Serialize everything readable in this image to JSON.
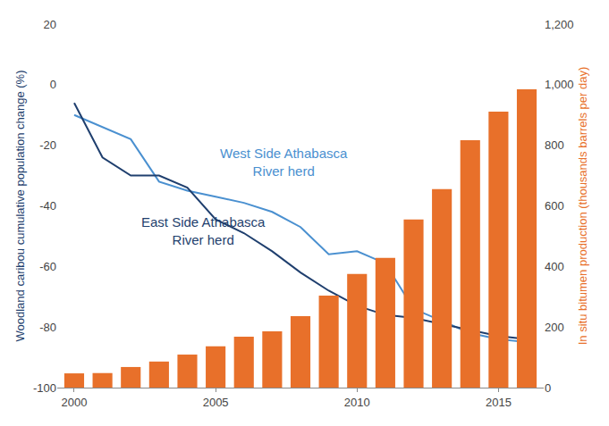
{
  "chart_data": {
    "type": "bar",
    "x": [
      2000,
      2001,
      2002,
      2003,
      2004,
      2005,
      2006,
      2007,
      2008,
      2009,
      2010,
      2011,
      2012,
      2013,
      2014,
      2015,
      2016
    ],
    "xlim": [
      1999.4,
      2016.6
    ],
    "xticks": [
      2000,
      2005,
      2010,
      2015
    ],
    "ylabel": "Woodland caribou cumulative population change (%)",
    "ylim": [
      -100,
      20
    ],
    "yticks": [
      -100,
      -80,
      -60,
      -40,
      -20,
      0,
      20
    ],
    "y2label": "In situ bitumen production (thousands barrels per day)",
    "y2lim": [
      0,
      1200
    ],
    "y2ticks": [
      0,
      200,
      400,
      600,
      800,
      {
        "value": 1000,
        "label": "1,000"
      },
      {
        "value": 1200,
        "label": "1,200"
      }
    ],
    "grid": false,
    "series": [
      {
        "type": "bar",
        "axis": "y2",
        "color": "#e8702a",
        "values": [
          47,
          48,
          68,
          86,
          109,
          136,
          168,
          186,
          236,
          304,
          375,
          428,
          555,
          655,
          817,
          911,
          985
        ]
      },
      {
        "type": "line",
        "name": "West Side Athabasca River herd",
        "color": "#4a90d0",
        "values": [
          -10,
          -14,
          -18,
          -32,
          -35,
          -37,
          -39,
          -42,
          -47,
          -56,
          -55,
          -59,
          -74,
          -78,
          -82,
          -84,
          -85
        ]
      },
      {
        "type": "line",
        "name": "East Side Athabasca River herd",
        "color": "#1f3f6e",
        "values": [
          -6,
          -24,
          -30,
          -30,
          -34,
          -44.5,
          -49,
          -55,
          -62,
          -68,
          -73,
          -76,
          -77,
          -79,
          -81,
          -83,
          -84
        ]
      }
    ]
  }
}
